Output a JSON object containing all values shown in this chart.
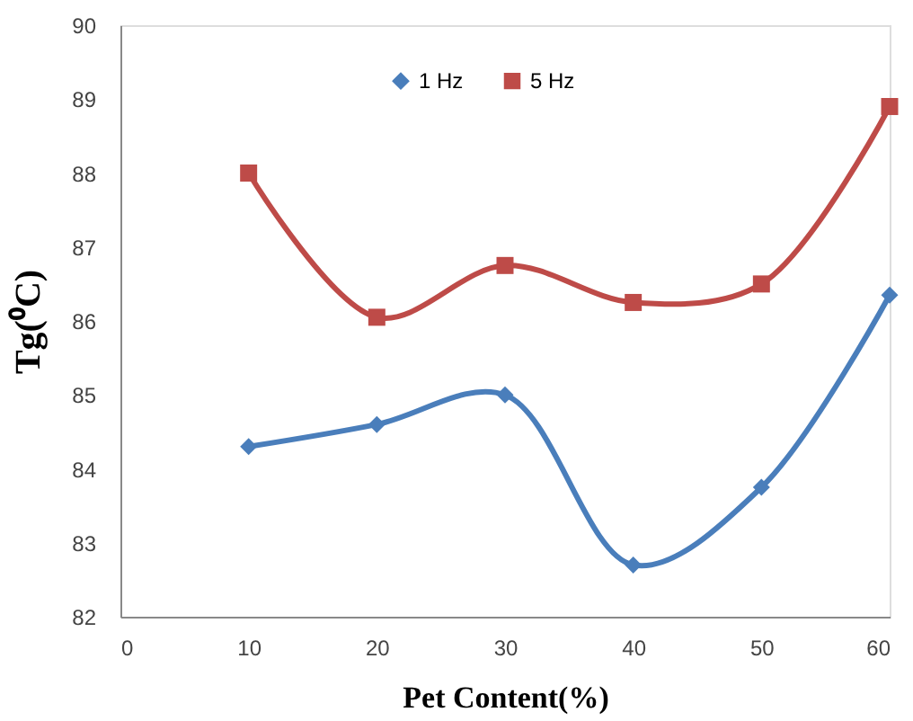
{
  "chart_data": {
    "type": "line",
    "xlabel": "Pet Content(%)",
    "ylabel": "Tg(⁰C)",
    "x": [
      10,
      20,
      30,
      40,
      50,
      60
    ],
    "series": [
      {
        "name": "1 Hz",
        "color": "#4a7ebb",
        "marker": "diamond",
        "values": [
          84.3,
          84.6,
          85.0,
          82.7,
          83.75,
          86.35
        ]
      },
      {
        "name": "5 Hz",
        "color": "#be4b48",
        "marker": "square",
        "values": [
          88.0,
          86.05,
          86.75,
          86.25,
          86.5,
          88.9
        ]
      }
    ],
    "xlim": [
      0,
      60
    ],
    "xticks": [
      0,
      10,
      20,
      30,
      40,
      50,
      60
    ],
    "ylim": [
      82,
      90
    ],
    "yticks": [
      82,
      83,
      84,
      85,
      86,
      87,
      88,
      89,
      90
    ],
    "grid": false,
    "legend": "top",
    "line_style": "solid"
  }
}
